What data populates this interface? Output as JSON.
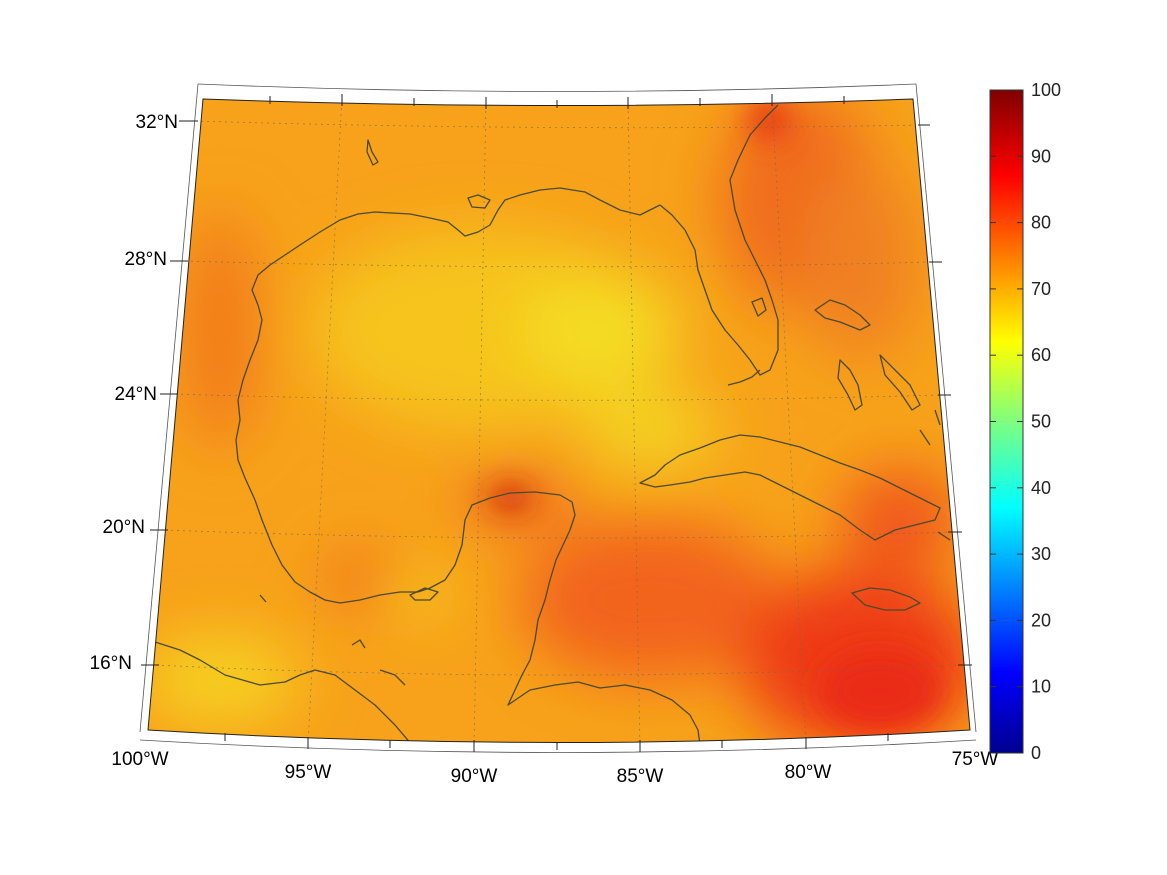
{
  "map": {
    "lat_labels": [
      "32°N",
      "28°N",
      "24°N",
      "20°N",
      "16°N"
    ],
    "lon_labels": [
      "100°W",
      "95°W",
      "90°W",
      "85°W",
      "80°W",
      "75°W"
    ],
    "projection": "conic",
    "extent": {
      "lon": [
        -100,
        -75
      ],
      "lat": [
        14,
        33
      ]
    }
  },
  "colorbar": {
    "colormap": "jet",
    "ticks": [
      "0",
      "10",
      "20",
      "30",
      "40",
      "50",
      "60",
      "70",
      "80",
      "90",
      "100"
    ],
    "range": [
      0,
      100
    ]
  },
  "colors": {
    "dominant_field": "#f7a21a",
    "high": "#f0451a",
    "peak": "#c01010",
    "low": "#f6dd20",
    "coastline": "#4a4a30"
  }
}
